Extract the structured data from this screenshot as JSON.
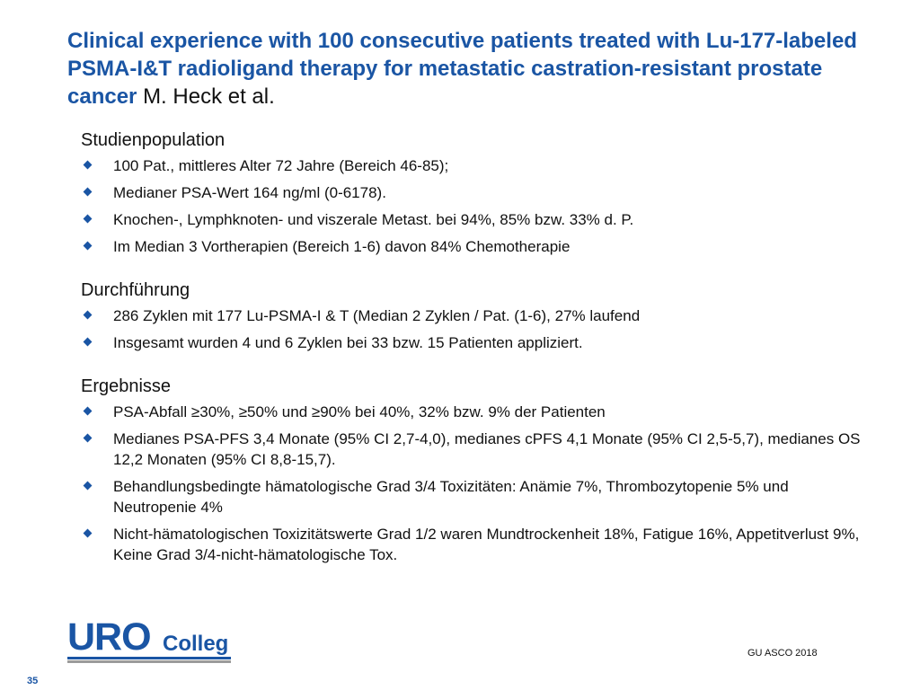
{
  "slide": {
    "title": "Clinical experience with 100 consecutive patients treated with Lu-177-labeled PSMA-I&T radioligand therapy for metastatic castration-resistant prostate cancer",
    "author": "M. Heck et al.",
    "sections": [
      {
        "heading": "Studienpopulation",
        "bullets": [
          "100 Pat., mittleres Alter  72 Jahre (Bereich 46-85);",
          "Medianer PSA-Wert 164 ng/ml (0-6178).",
          "Knochen-, Lymphknoten- und viszerale Metast. bei 94%, 85% bzw. 33% d. P.",
          "Im Median 3 Vortherapien (Bereich 1-6) davon 84% Chemotherapie"
        ]
      },
      {
        "heading": "Durchführung",
        "bullets": [
          "286 Zyklen mit 177 Lu-PSMA-I & T (Median 2 Zyklen / Pat. (1-6), 27% laufend",
          "Insgesamt wurden 4 und 6 Zyklen bei 33 bzw. 15 Patienten appliziert."
        ]
      },
      {
        "heading": "Ergebnisse",
        "bullets": [
          "PSA-Abfall ≥30%, ≥50% und ≥90% bei 40%, 32% bzw. 9%  der Patienten",
          "Medianes PSA-PFS 3,4 Monate (95% CI 2,7-4,0), medianes cPFS 4,1 Monate (95% CI 2,5-5,7), medianes OS 12,2 Monaten (95% CI 8,8-15,7).",
          "Behandlungsbedingte hämatologische Grad 3/4 Toxizitäten: Anämie 7%, Thrombozytopenie 5% und Neutropenie 4%",
          "Nicht-hämatologischen Toxizitätswerte Grad 1/2 waren Mundtrockenheit 18%, Fatigue 16%, Appetitverlust 9%, Keine Grad 3/4-nicht-hämatologische Tox."
        ]
      }
    ]
  },
  "logo": {
    "primary": "URO",
    "secondary": "Colleg"
  },
  "footer": {
    "source": "GU ASCO 2018",
    "page_number": "35"
  },
  "colors": {
    "accent": "#1a55a4",
    "text": "#111111",
    "logo_bar_gray": "#9a9a9a"
  }
}
